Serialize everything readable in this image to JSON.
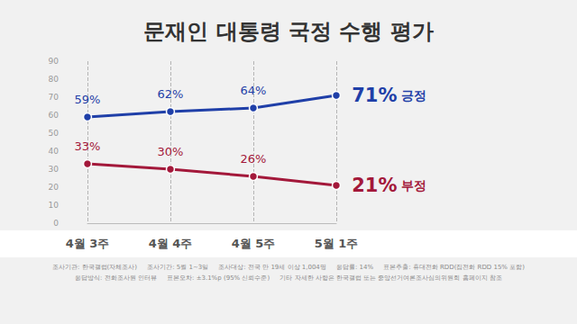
{
  "chart_data": {
    "type": "line",
    "title": "문재인 대통령 국정 수행 평가",
    "categories": [
      "4월 3주",
      "4월 4주",
      "4월 5주",
      "5월 1주"
    ],
    "series": [
      {
        "name": "긍정",
        "color": "#1f3fa8",
        "marker": "circle",
        "values": [
          59,
          62,
          64,
          71
        ],
        "value_labels": [
          "59%",
          "62%",
          "64%",
          "71%"
        ]
      },
      {
        "name": "부정",
        "color": "#a3183a",
        "marker": "circle",
        "values": [
          33,
          30,
          26,
          21
        ],
        "value_labels": [
          "33%",
          "30%",
          "26%",
          "21%"
        ]
      }
    ],
    "ylim": [
      0,
      90
    ],
    "yticks": [
      0,
      10,
      20,
      30,
      40,
      50,
      60,
      70,
      80,
      90
    ],
    "grid": true,
    "data_labels": true,
    "annotations": [
      "조사기관: 한국갤럽(자체조사)",
      "조사기간: 5월 1~3일",
      "조사대상: 전국 만 19세 이상 1,004명",
      "응답률: 14%",
      "표본추출: 휴대전화 RDD(집전화 RDD 15% 포함)",
      "응답방식: 전화조사원 인터뷰",
      "표본오차: ±3.1%p (95% 신뢰수준)",
      "기타 자세한 사항은 한국갤럽 또는 중앙선거여론조사심의위원회 홈페이지 참조"
    ]
  }
}
